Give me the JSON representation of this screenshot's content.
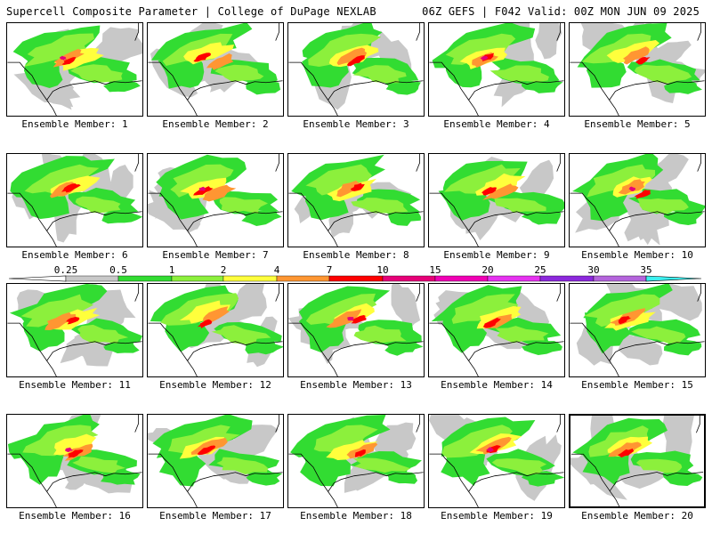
{
  "header": {
    "left": "Supercell Composite Parameter | College of DuPage NEXLAB",
    "right": "06Z GEFS | F042 Valid: 00Z MON JUN 09 2025"
  },
  "colorbar": {
    "ticks": [
      "0.25",
      "0.5",
      "1",
      "2",
      "4",
      "7",
      "10",
      "15",
      "20",
      "25",
      "30",
      "35"
    ],
    "colors": [
      "#c8c8c8",
      "#32dc32",
      "#8cf03c",
      "#ffff3c",
      "#ff9632",
      "#ff0000",
      "#e60078",
      "#f000b4",
      "#e632f0",
      "#8c28dc",
      "#b464dc",
      "#3cf0f0"
    ]
  },
  "members": [
    {
      "label": "Ensemble Member: 1",
      "selected": false
    },
    {
      "label": "Ensemble Member: 2",
      "selected": false
    },
    {
      "label": "Ensemble Member: 3",
      "selected": false
    },
    {
      "label": "Ensemble Member: 4",
      "selected": false
    },
    {
      "label": "Ensemble Member: 5",
      "selected": false
    },
    {
      "label": "Ensemble Member: 6",
      "selected": false
    },
    {
      "label": "Ensemble Member: 7",
      "selected": false
    },
    {
      "label": "Ensemble Member: 8",
      "selected": false
    },
    {
      "label": "Ensemble Member: 9",
      "selected": false
    },
    {
      "label": "Ensemble Member: 10",
      "selected": false
    },
    {
      "label": "Ensemble Member: 11",
      "selected": false
    },
    {
      "label": "Ensemble Member: 12",
      "selected": false
    },
    {
      "label": "Ensemble Member: 13",
      "selected": false
    },
    {
      "label": "Ensemble Member: 14",
      "selected": false
    },
    {
      "label": "Ensemble Member: 15",
      "selected": false
    },
    {
      "label": "Ensemble Member: 16",
      "selected": false
    },
    {
      "label": "Ensemble Member: 17",
      "selected": false
    },
    {
      "label": "Ensemble Member: 18",
      "selected": false
    },
    {
      "label": "Ensemble Member: 19",
      "selected": false
    },
    {
      "label": "Ensemble Member: 20",
      "selected": true
    }
  ]
}
